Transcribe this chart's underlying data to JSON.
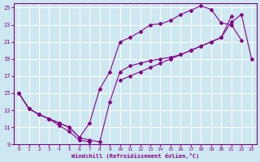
{
  "xlabel": "Windchill (Refroidissement éolien,°C)",
  "xlim": [
    -0.5,
    23.5
  ],
  "ylim": [
    9,
    25.5
  ],
  "xticks": [
    0,
    1,
    2,
    3,
    4,
    5,
    6,
    7,
    8,
    9,
    10,
    11,
    12,
    13,
    14,
    15,
    16,
    17,
    18,
    19,
    20,
    21,
    22,
    23
  ],
  "yticks": [
    9,
    11,
    13,
    15,
    17,
    19,
    21,
    23,
    25
  ],
  "bg_color": "#cde8f0",
  "line_color": "#880088",
  "grid_color": "#ffffff",
  "series1_x": [
    0,
    1,
    2,
    3,
    4,
    5,
    6,
    7,
    8,
    9,
    10,
    11,
    12,
    13,
    14,
    15,
    16,
    17,
    18,
    19,
    20,
    21,
    22,
    23
  ],
  "series1_y": [
    15,
    13.2,
    12.5,
    12.0,
    11.5,
    11.0,
    9.8,
    11.5,
    15.5,
    17.5,
    21.0,
    21.5,
    22.2,
    23.0,
    23.1,
    23.5,
    24.2,
    24.7,
    25.2,
    24.8,
    23.2,
    23.0,
    21.2,
    null
  ],
  "series2_x": [
    0,
    1,
    2,
    3,
    4,
    5,
    6,
    7,
    8,
    9,
    10,
    11,
    12,
    13,
    14,
    15,
    16,
    17,
    18,
    19,
    20,
    21,
    22,
    23
  ],
  "series2_y": [
    15,
    13.2,
    12.5,
    12.0,
    11.5,
    11.0,
    9.8,
    9.5,
    9.3,
    14.0,
    17.5,
    18.2,
    18.5,
    18.8,
    19.0,
    19.2,
    19.5,
    20.0,
    20.5,
    21.0,
    21.5,
    24.0,
    null,
    null
  ],
  "series3_x": [
    0,
    1,
    2,
    3,
    4,
    5,
    6,
    7,
    8,
    9,
    10,
    11,
    12,
    13,
    14,
    15,
    16,
    17,
    18,
    19,
    20,
    21,
    22,
    23
  ],
  "series3_y": [
    15,
    13.2,
    12.5,
    12.0,
    11.2,
    10.5,
    9.5,
    9.3,
    null,
    null,
    16.5,
    17.0,
    17.5,
    18.0,
    18.5,
    19.0,
    19.5,
    20.0,
    20.5,
    21.0,
    21.5,
    23.3,
    24.2,
    19.0
  ]
}
